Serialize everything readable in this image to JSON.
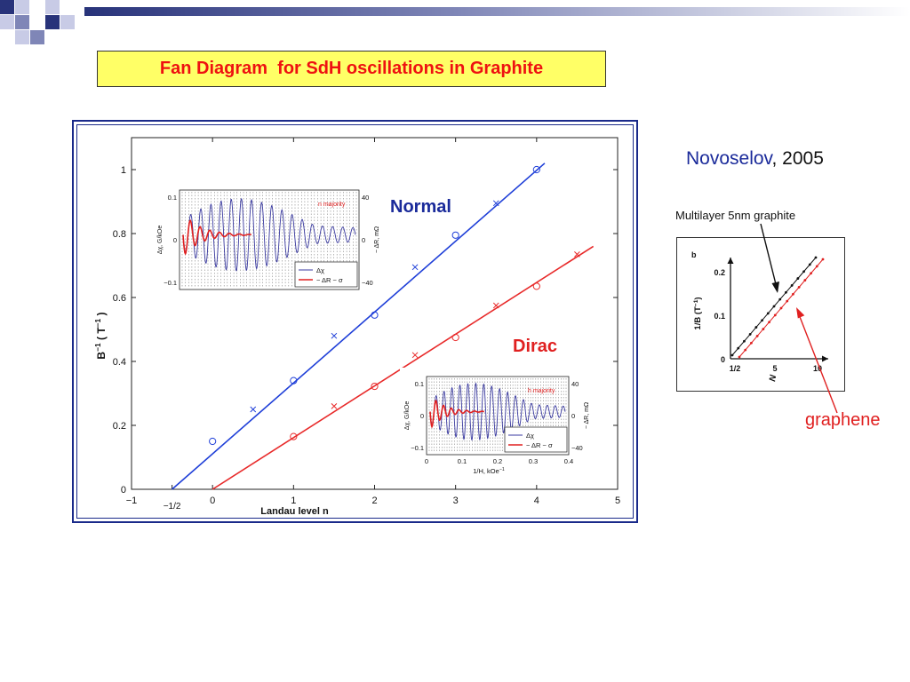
{
  "slide": {
    "title": "Fan Diagram  for SdH oscillations in Graphite",
    "citation_author": "Novoselov",
    "citation_year": ", 2005",
    "multilayer_label": "Multilayer 5nm graphite",
    "graphene_label": "graphene",
    "colors": {
      "title_text": "#ee1111",
      "title_bg": "#ffff66",
      "frame": "#1a2a8a",
      "author": "#1a2a9a",
      "graphene": "#e02020"
    }
  },
  "chart_data": [
    {
      "id": "main",
      "type": "scatter",
      "xlabel": "Landau level   n",
      "ylabel": "B",
      "ylabel_sup": "−1",
      "ylabel_units": "  ( T",
      "ylabel_units_sup": "−1",
      "ylabel_close": " )",
      "xlim": [
        -1,
        5
      ],
      "ylim": [
        0,
        1.1
      ],
      "x_ticks": [
        "−1",
        "0",
        "1",
        "2",
        "3",
        "4",
        "5"
      ],
      "x_extra_tick": "−1/2",
      "y_ticks": [
        "0",
        "0.2",
        "0.4",
        "0.6",
        "0.8",
        "1"
      ],
      "annotations": {
        "normal": "Normal",
        "dirac": "Dirac"
      },
      "series": [
        {
          "name": "Normal",
          "color": "#1f3fd8",
          "circles": [
            [
              0,
              0.15
            ],
            [
              1,
              0.34
            ],
            [
              2,
              0.545
            ],
            [
              3,
              0.795
            ],
            [
              4,
              1.0
            ]
          ],
          "crosses": [
            [
              0.5,
              0.25
            ],
            [
              1.5,
              0.48
            ],
            [
              2.5,
              0.695
            ],
            [
              3.5,
              0.895
            ]
          ],
          "fit": [
            [
              -0.5,
              0.0
            ],
            [
              4.1,
              1.02
            ]
          ]
        },
        {
          "name": "Dirac",
          "color": "#e82a2a",
          "circles": [
            [
              1,
              0.165
            ],
            [
              2,
              0.322
            ],
            [
              3,
              0.475
            ],
            [
              4,
              0.635
            ]
          ],
          "crosses": [
            [
              1.5,
              0.26
            ],
            [
              2.5,
              0.42
            ],
            [
              3.5,
              0.575
            ],
            [
              4.5,
              0.735
            ]
          ],
          "fit": [
            [
              0,
              0.0
            ],
            [
              4.7,
              0.76
            ]
          ]
        }
      ]
    },
    {
      "id": "inset_normal",
      "type": "line",
      "left_ticks": [
        "0.1",
        "0",
        "−0.1"
      ],
      "right_ticks": [
        "40",
        "0",
        "−40"
      ],
      "left_label": "Δχ, G/kOe",
      "right_label": "− ΔR, mΩ",
      "annotation": "n majority",
      "legend": [
        "Δχ",
        "− ΔR ~ σ"
      ],
      "colors": {
        "chi": "#3a3aa0",
        "dR": "#e02020",
        "dotted": "#222222"
      }
    },
    {
      "id": "inset_dirac",
      "type": "line",
      "xlabel": "1/H, kOe",
      "xlabel_sup": "−1",
      "x_ticks": [
        "0",
        "0.1",
        "0.2",
        "0.3",
        "0.4"
      ],
      "left_ticks": [
        "0.1",
        "0",
        "−0.1"
      ],
      "right_ticks": [
        "40",
        "0",
        "−40"
      ],
      "left_label": "Δχ, G/kOe",
      "right_label": "− ΔR, mΩ",
      "annotation": "h majority",
      "legend": [
        "Δχ",
        "− ΔR ~ σ"
      ],
      "colors": {
        "chi": "#3a3aa0",
        "dR": "#e02020",
        "dotted": "#222222"
      }
    },
    {
      "id": "novoselov",
      "type": "line",
      "xlabel": "N",
      "ylabel": "1/B (T",
      "ylabel_sup": "−1",
      "ylabel_close": ")",
      "x_ticks": [
        "1/2",
        "5",
        "10"
      ],
      "y_ticks": [
        "0",
        "0.1",
        "0.2"
      ],
      "series": [
        {
          "name": "",
          "color": "#111111"
        },
        {
          "name": "",
          "color": "#e02020"
        }
      ]
    }
  ]
}
